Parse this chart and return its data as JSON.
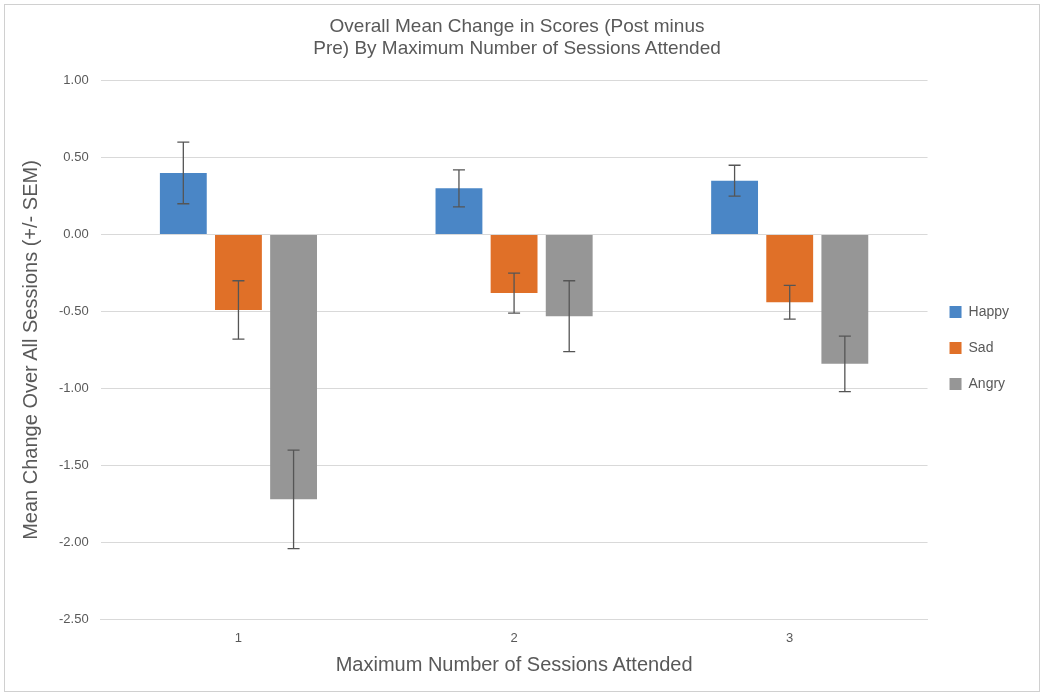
{
  "chart_data": {
    "type": "bar",
    "title": "Overall Mean Change in Scores (Post minus Pre) By Maximum Number of Sessions Attended",
    "xlabel": "Maximum Number of Sessions Attended",
    "ylabel": "Mean Change Over All Sessions (+/- SEM)",
    "categories": [
      "1",
      "2",
      "3"
    ],
    "series": [
      {
        "name": "Happy",
        "color": "#4a86c6",
        "values": [
          0.4,
          0.3,
          0.35
        ],
        "errors": [
          0.2,
          0.12,
          0.1
        ]
      },
      {
        "name": "Sad",
        "color": "#e07028",
        "values": [
          -0.49,
          -0.38,
          -0.44
        ],
        "errors": [
          0.19,
          0.13,
          0.11
        ]
      },
      {
        "name": "Angry",
        "color": "#969696",
        "values": [
          -1.72,
          -0.53,
          -0.84
        ],
        "errors": [
          0.32,
          0.23,
          0.18
        ]
      }
    ],
    "ylim": [
      -2.5,
      1.0
    ],
    "yticks": [
      {
        "value": -2.5,
        "label": "-2.50"
      },
      {
        "value": -2.0,
        "label": "-2.00"
      },
      {
        "value": -1.5,
        "label": "-1.50"
      },
      {
        "value": -1.0,
        "label": "-1.00"
      },
      {
        "value": -0.5,
        "label": "-0.50"
      },
      {
        "value": 0,
        "label": "0.00"
      },
      {
        "value": 0.5,
        "label": "0.50"
      },
      {
        "value": 1.0,
        "label": "1.00"
      }
    ],
    "grid": "y",
    "legend": "right"
  }
}
